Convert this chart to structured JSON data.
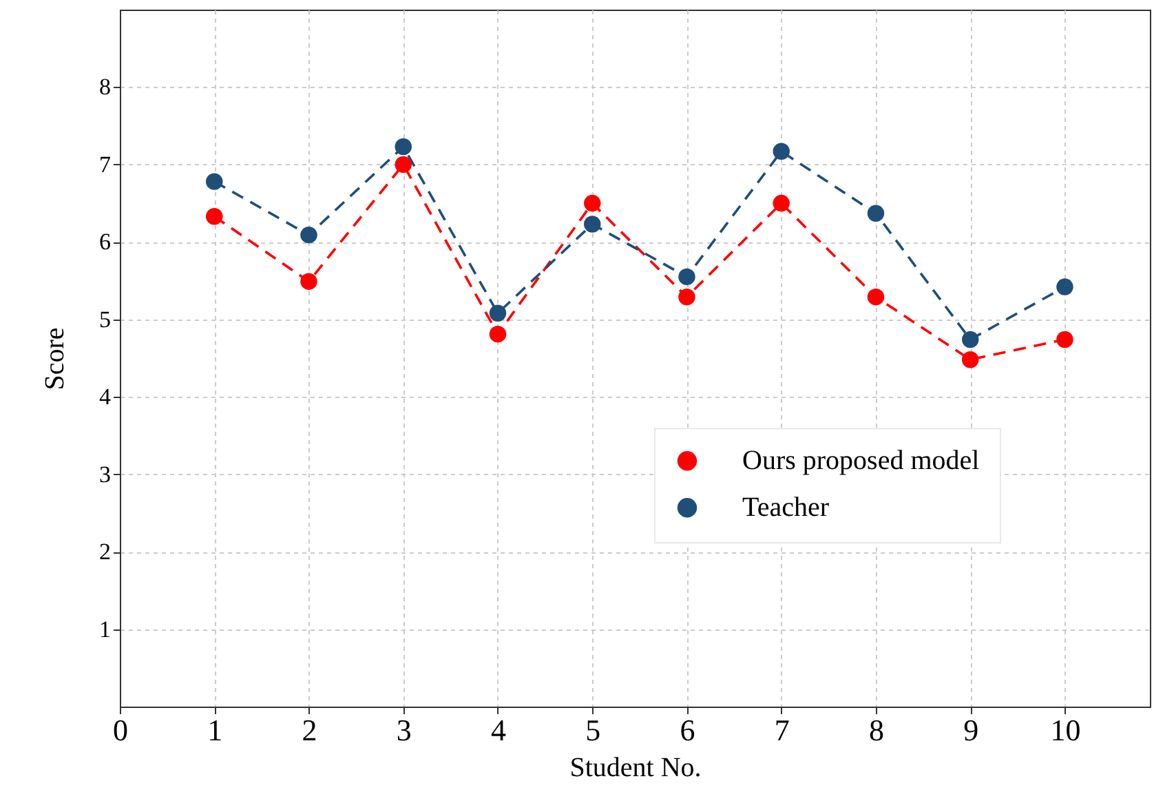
{
  "chart_data": {
    "type": "line",
    "xlabel": "Student No.",
    "ylabel": "Score",
    "x": [
      1,
      2,
      3,
      4,
      5,
      6,
      7,
      8,
      9,
      10
    ],
    "series": [
      {
        "name": "Ours proposed model",
        "color": "#ff0000",
        "values": [
          6.33,
          5.49,
          7.0,
          4.81,
          6.5,
          5.29,
          6.5,
          5.29,
          4.48,
          4.74
        ]
      },
      {
        "name": "Teacher",
        "color": "#1f4e79",
        "values": [
          6.78,
          6.09,
          7.23,
          5.08,
          6.23,
          5.55,
          7.17,
          6.37,
          4.74,
          5.42
        ]
      }
    ],
    "xlim": [
      0,
      10.9
    ],
    "xticks": [
      0,
      1,
      2,
      3,
      4,
      5,
      6,
      7,
      8,
      9,
      10
    ],
    "ylim": [
      0,
      9
    ],
    "yticks": [
      1,
      2,
      3,
      4,
      5,
      6,
      7,
      8
    ],
    "grid": true,
    "legend": "right",
    "marker": "circle",
    "line_style": "dashed"
  }
}
